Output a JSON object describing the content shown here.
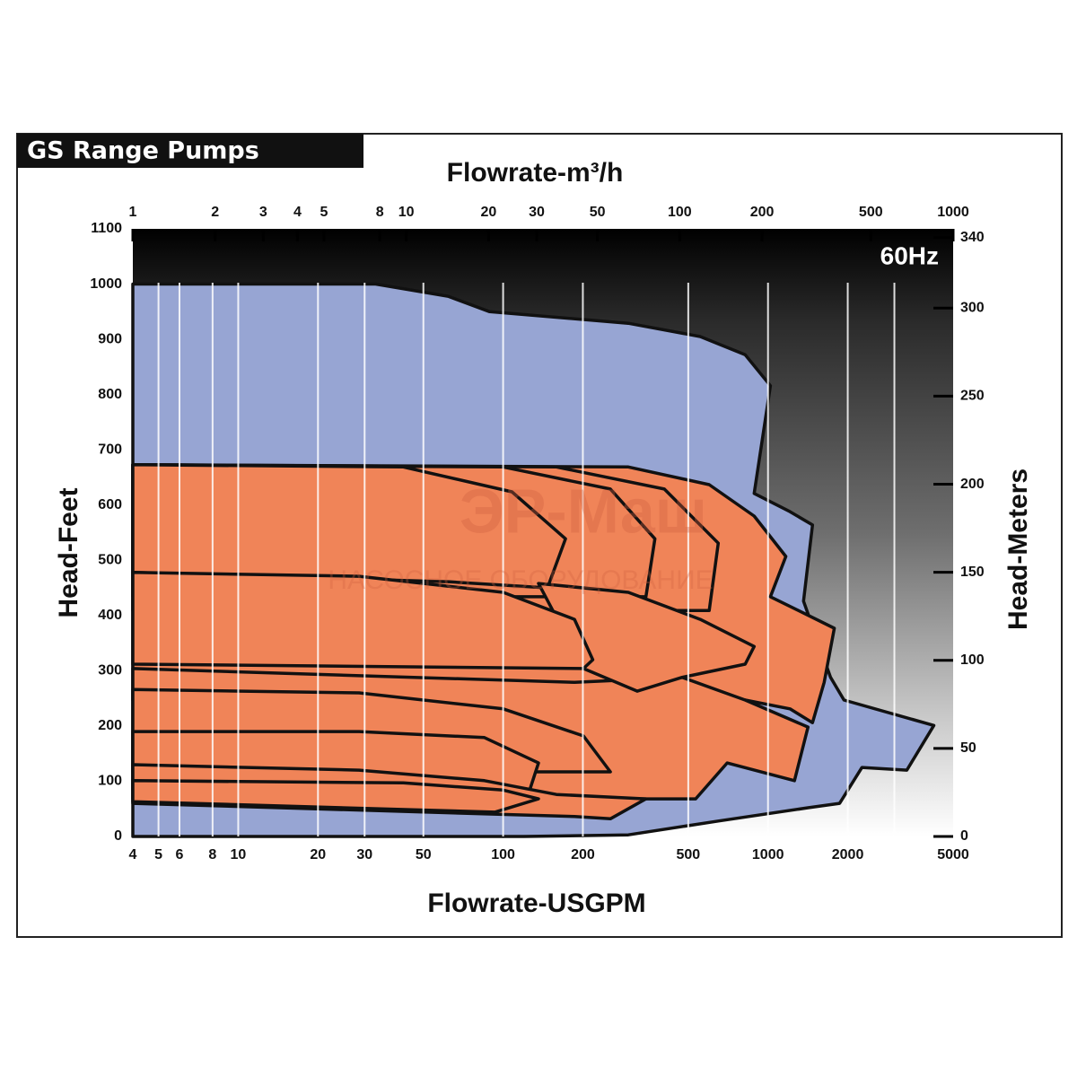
{
  "chart_data": {
    "type": "area",
    "title": "GS Range Pumps",
    "annotation": "60Hz",
    "watermark": [
      "ЭР-Маш",
      "НАСОСНОЕ ОБОРУДОВАНИЕ"
    ],
    "x_label": "Flowrate-USGPM",
    "x2_label": "Flowrate-m³/h",
    "y_label": "Head-Feet",
    "y2_label": "Head-Meters",
    "xscale": "log",
    "xlim": [
      4,
      5000
    ],
    "xticks": [
      4,
      5,
      6,
      8,
      10,
      20,
      30,
      50,
      100,
      200,
      500,
      1000,
      2000,
      5000
    ],
    "xgrid": [
      5,
      6,
      8,
      10,
      20,
      30,
      50,
      100,
      200,
      500,
      1000,
      2000,
      3000
    ],
    "x2lim": [
      1,
      1000
    ],
    "x2ticks": [
      1,
      2,
      3,
      4,
      5,
      8,
      10,
      20,
      30,
      50,
      100,
      200,
      500,
      1000
    ],
    "ylim": [
      0,
      1100
    ],
    "yticks": [
      0,
      100,
      200,
      300,
      400,
      500,
      600,
      700,
      800,
      900,
      1000,
      1100
    ],
    "y2lim": [
      0,
      345
    ],
    "y2ticks": [
      0,
      50,
      100,
      150,
      200,
      250,
      300,
      340
    ],
    "regions": [
      {
        "color": "#97a5d3",
        "x": [
          4,
          33,
          62,
          89,
          297,
          555,
          820,
          1021,
          887,
          1211,
          1472,
          1362,
          1722,
          1936,
          4227,
          3342,
          2264,
          1863,
          1416,
          649,
          297,
          120,
          4
        ],
        "y": [
          1000,
          1000,
          978,
          950,
          929,
          905,
          872,
          816,
          621,
          588,
          564,
          426,
          288,
          247,
          201,
          120,
          125,
          60,
          52,
          28,
          3,
          0,
          0
        ]
      },
      {
        "color": "#f08458",
        "x": [
          4,
          297,
          600,
          887,
          1168,
          1021,
          1780,
          1629,
          1472,
          1211,
          820,
          4
        ],
        "y": [
          673,
          669,
          637,
          580,
          507,
          434,
          377,
          279,
          206,
          231,
          247,
          247
        ]
      },
      {
        "color": "#f08458",
        "x": [
          4,
          159,
          406,
          649,
          600,
          4
        ],
        "y": [
          673,
          669,
          629,
          531,
          409,
          409
        ]
      },
      {
        "color": "#f08458",
        "x": [
          4,
          100,
          254,
          374,
          346,
          4
        ],
        "y": [
          673,
          669,
          629,
          539,
          434,
          434
        ]
      },
      {
        "color": "#f08458",
        "x": [
          4,
          42,
          108,
          172,
          147,
          63,
          4
        ],
        "y": [
          673,
          669,
          624,
          539,
          450,
          461,
          478
        ]
      },
      {
        "color": "#f08458",
        "x": [
          4,
          186,
          474,
          820,
          1416,
          1259,
          701,
          533,
          4
        ],
        "y": [
          304,
          279,
          288,
          247,
          198,
          101,
          133,
          68,
          68
        ]
      },
      {
        "color": "#f08458",
        "x": [
          136,
          297,
          555,
          887,
          820,
          474,
          321,
          201
        ],
        "y": [
          458,
          442,
          393,
          344,
          312,
          288,
          263,
          304
        ]
      },
      {
        "color": "#f08458",
        "x": [
          4,
          28.6,
          100,
          186,
          218,
          201,
          4
        ],
        "y": [
          478,
          471,
          442,
          393,
          320,
          304,
          312
        ]
      },
      {
        "color": "#f08458",
        "x": [
          4,
          28.6,
          100,
          201,
          254,
          4
        ],
        "y": [
          266,
          260,
          231,
          182,
          117,
          117
        ]
      },
      {
        "color": "#f08458",
        "x": [
          4,
          28.6,
          85,
          136,
          126,
          4
        ],
        "y": [
          190,
          190,
          179,
          133,
          84,
          84
        ]
      },
      {
        "color": "#f08458",
        "x": [
          4,
          28.6,
          85,
          159,
          346,
          254,
          186,
          4
        ],
        "y": [
          130,
          120,
          101,
          76,
          68,
          32,
          36,
          60
        ]
      },
      {
        "color": "#f08458",
        "x": [
          4,
          42,
          100,
          136,
          93,
          4
        ],
        "y": [
          101,
          97,
          84,
          68,
          44,
          63
        ]
      }
    ]
  }
}
